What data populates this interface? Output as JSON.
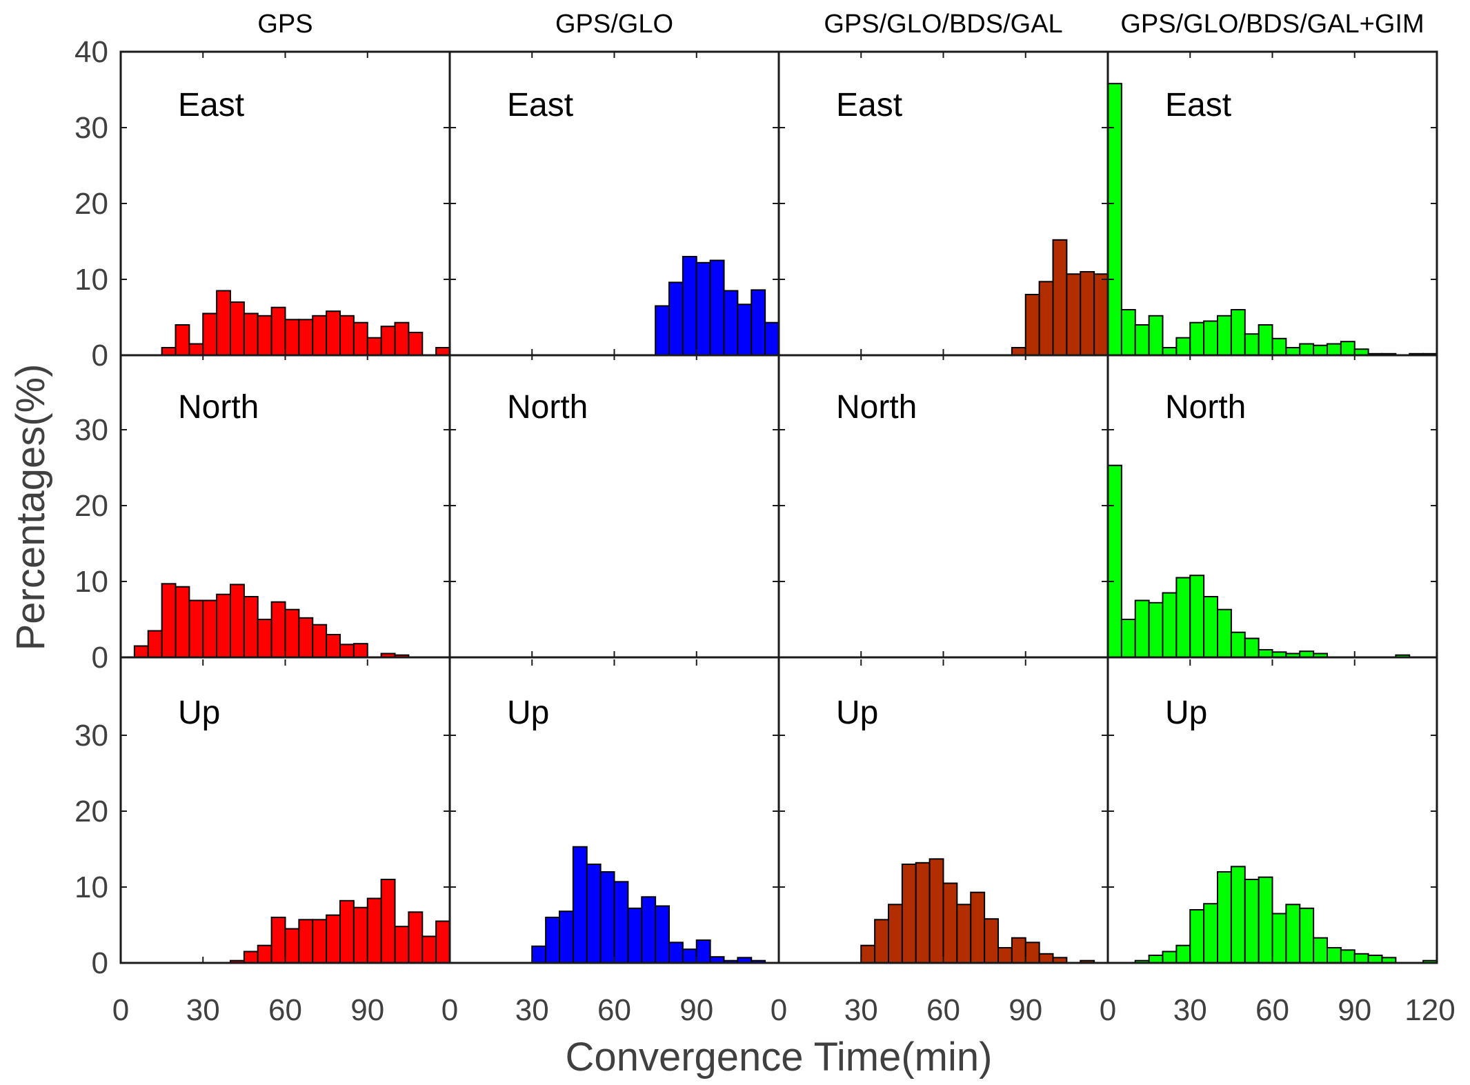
{
  "chart_data": {
    "type": "bar",
    "subtype": "histogram-grid",
    "xlabel": "Convergence Time(min)",
    "ylabel": "Percentages(%)",
    "xlim": [
      0,
      120
    ],
    "ylim": [
      0,
      40
    ],
    "bin_width": 5,
    "bin_starts": [
      0,
      5,
      10,
      15,
      20,
      25,
      30,
      35,
      40,
      45,
      50,
      55,
      60,
      65,
      70,
      75,
      80,
      85,
      90,
      95,
      100,
      105,
      110,
      115
    ],
    "x_ticks": [
      "0",
      "30",
      "60",
      "90",
      "120"
    ],
    "y_ticks_top": [
      "0",
      "10",
      "20",
      "30",
      "40"
    ],
    "y_ticks_other": [
      "0",
      "10",
      "20",
      "30"
    ],
    "columns": [
      {
        "title": "GPS",
        "color": "#ff0000"
      },
      {
        "title": "GPS/GLO",
        "color": "#0000ff"
      },
      {
        "title": "GPS/GLO/BDS/GAL",
        "color": "#b22d00"
      },
      {
        "title": "GPS/GLO/BDS/GAL+GIM",
        "color": "#00ff00"
      }
    ],
    "rows": [
      {
        "label": "East",
        "series": [
          {
            "name": "GPS",
            "values": [
              0,
              0,
              0,
              1.0,
              4.0,
              1.5,
              5.5,
              8.5,
              7.0,
              5.5,
              5.2,
              6.3,
              4.7,
              4.7,
              5.2,
              5.8,
              5.2,
              4.3,
              2.3,
              3.8,
              4.3,
              3.0,
              0,
              1.0
            ]
          },
          {
            "name": "GPS/GLO",
            "values": [
              0,
              0,
              0,
              0,
              0,
              0,
              0,
              0,
              0,
              0,
              0,
              0,
              0,
              0,
              0,
              6.5,
              9.6,
              13.0,
              12.2,
              12.5,
              8.5,
              6.7,
              8.6,
              4.3
            ]
          },
          {
            "name": "GPS/GLO/BDS/GAL",
            "values": [
              0,
              0,
              0,
              0,
              0,
              0,
              0,
              0,
              0,
              0,
              0,
              0,
              0,
              0,
              0,
              0,
              0,
              1.0,
              8.0,
              9.7,
              15.2,
              10.7,
              11.0,
              10.7
            ]
          },
          {
            "name": "GPS/GLO/BDS/GAL+GIM",
            "values": [
              35.8,
              6.0,
              4.0,
              5.2,
              1.0,
              2.3,
              4.3,
              4.5,
              5.2,
              6.0,
              2.8,
              4.0,
              2.2,
              1.0,
              1.5,
              1.3,
              1.5,
              1.8,
              0.8,
              0.2,
              0.2,
              0,
              0.2,
              0.2
            ]
          }
        ]
      },
      {
        "label": "North",
        "series": [
          {
            "name": "GPS",
            "values": [
              0,
              1.5,
              3.5,
              9.7,
              9.3,
              7.5,
              7.5,
              8.3,
              9.6,
              8.0,
              5.0,
              7.3,
              6.3,
              5.2,
              4.3,
              3.0,
              1.7,
              1.8,
              0,
              0.5,
              0.3,
              0,
              0,
              0
            ]
          },
          {
            "name": "GPS/GLO",
            "values": [
              0,
              0,
              0,
              0,
              0,
              0,
              0,
              0,
              0,
              0,
              0,
              0,
              0,
              0,
              0,
              0,
              0,
              0,
              0,
              0,
              0,
              0,
              0,
              0
            ]
          },
          {
            "name": "GPS/GLO/BDS/GAL",
            "values": [
              0,
              0,
              0,
              0,
              0,
              0,
              0,
              0,
              0,
              0,
              0,
              0,
              0,
              0,
              0,
              0,
              0,
              0,
              0,
              0,
              0,
              0,
              0,
              0
            ]
          },
          {
            "name": "GPS/GLO/BDS/GAL+GIM",
            "values": [
              25.3,
              5.0,
              7.5,
              7.2,
              8.5,
              10.5,
              10.8,
              8.0,
              6.3,
              3.3,
              2.5,
              1.0,
              0.7,
              0.5,
              0.8,
              0.5,
              0,
              0,
              0,
              0,
              0,
              0.3,
              0,
              0
            ]
          }
        ]
      },
      {
        "label": "Up",
        "series": [
          {
            "name": "GPS",
            "values": [
              0,
              0,
              0,
              0,
              0,
              0,
              0,
              0,
              0.3,
              1.5,
              2.3,
              6.0,
              4.5,
              5.7,
              5.7,
              6.3,
              8.2,
              7.3,
              8.5,
              11.0,
              4.8,
              6.7,
              3.5,
              5.5
            ]
          },
          {
            "name": "GPS/GLO",
            "values": [
              0,
              0,
              0,
              0,
              0,
              0,
              2.2,
              6.0,
              6.8,
              15.3,
              13.0,
              12.0,
              10.7,
              7.2,
              8.7,
              7.5,
              2.7,
              1.8,
              3.0,
              0.8,
              0.3,
              0.7,
              0.3,
              0
            ]
          },
          {
            "name": "GPS/GLO/BDS/GAL",
            "values": [
              0,
              0,
              0,
              0,
              0,
              0,
              2.3,
              5.7,
              7.7,
              13.0,
              13.2,
              13.7,
              10.5,
              7.7,
              9.3,
              5.8,
              2.0,
              3.3,
              2.7,
              1.2,
              0.7,
              0,
              0.3,
              0
            ]
          },
          {
            "name": "GPS/GLO/BDS/GAL+GIM",
            "values": [
              0,
              0,
              0.3,
              1.0,
              1.5,
              2.3,
              7.0,
              7.8,
              12.0,
              12.7,
              11.0,
              11.3,
              6.5,
              7.7,
              7.2,
              3.3,
              2.0,
              1.7,
              1.2,
              1.0,
              0.7,
              0,
              0,
              0.3
            ]
          }
        ]
      }
    ]
  }
}
